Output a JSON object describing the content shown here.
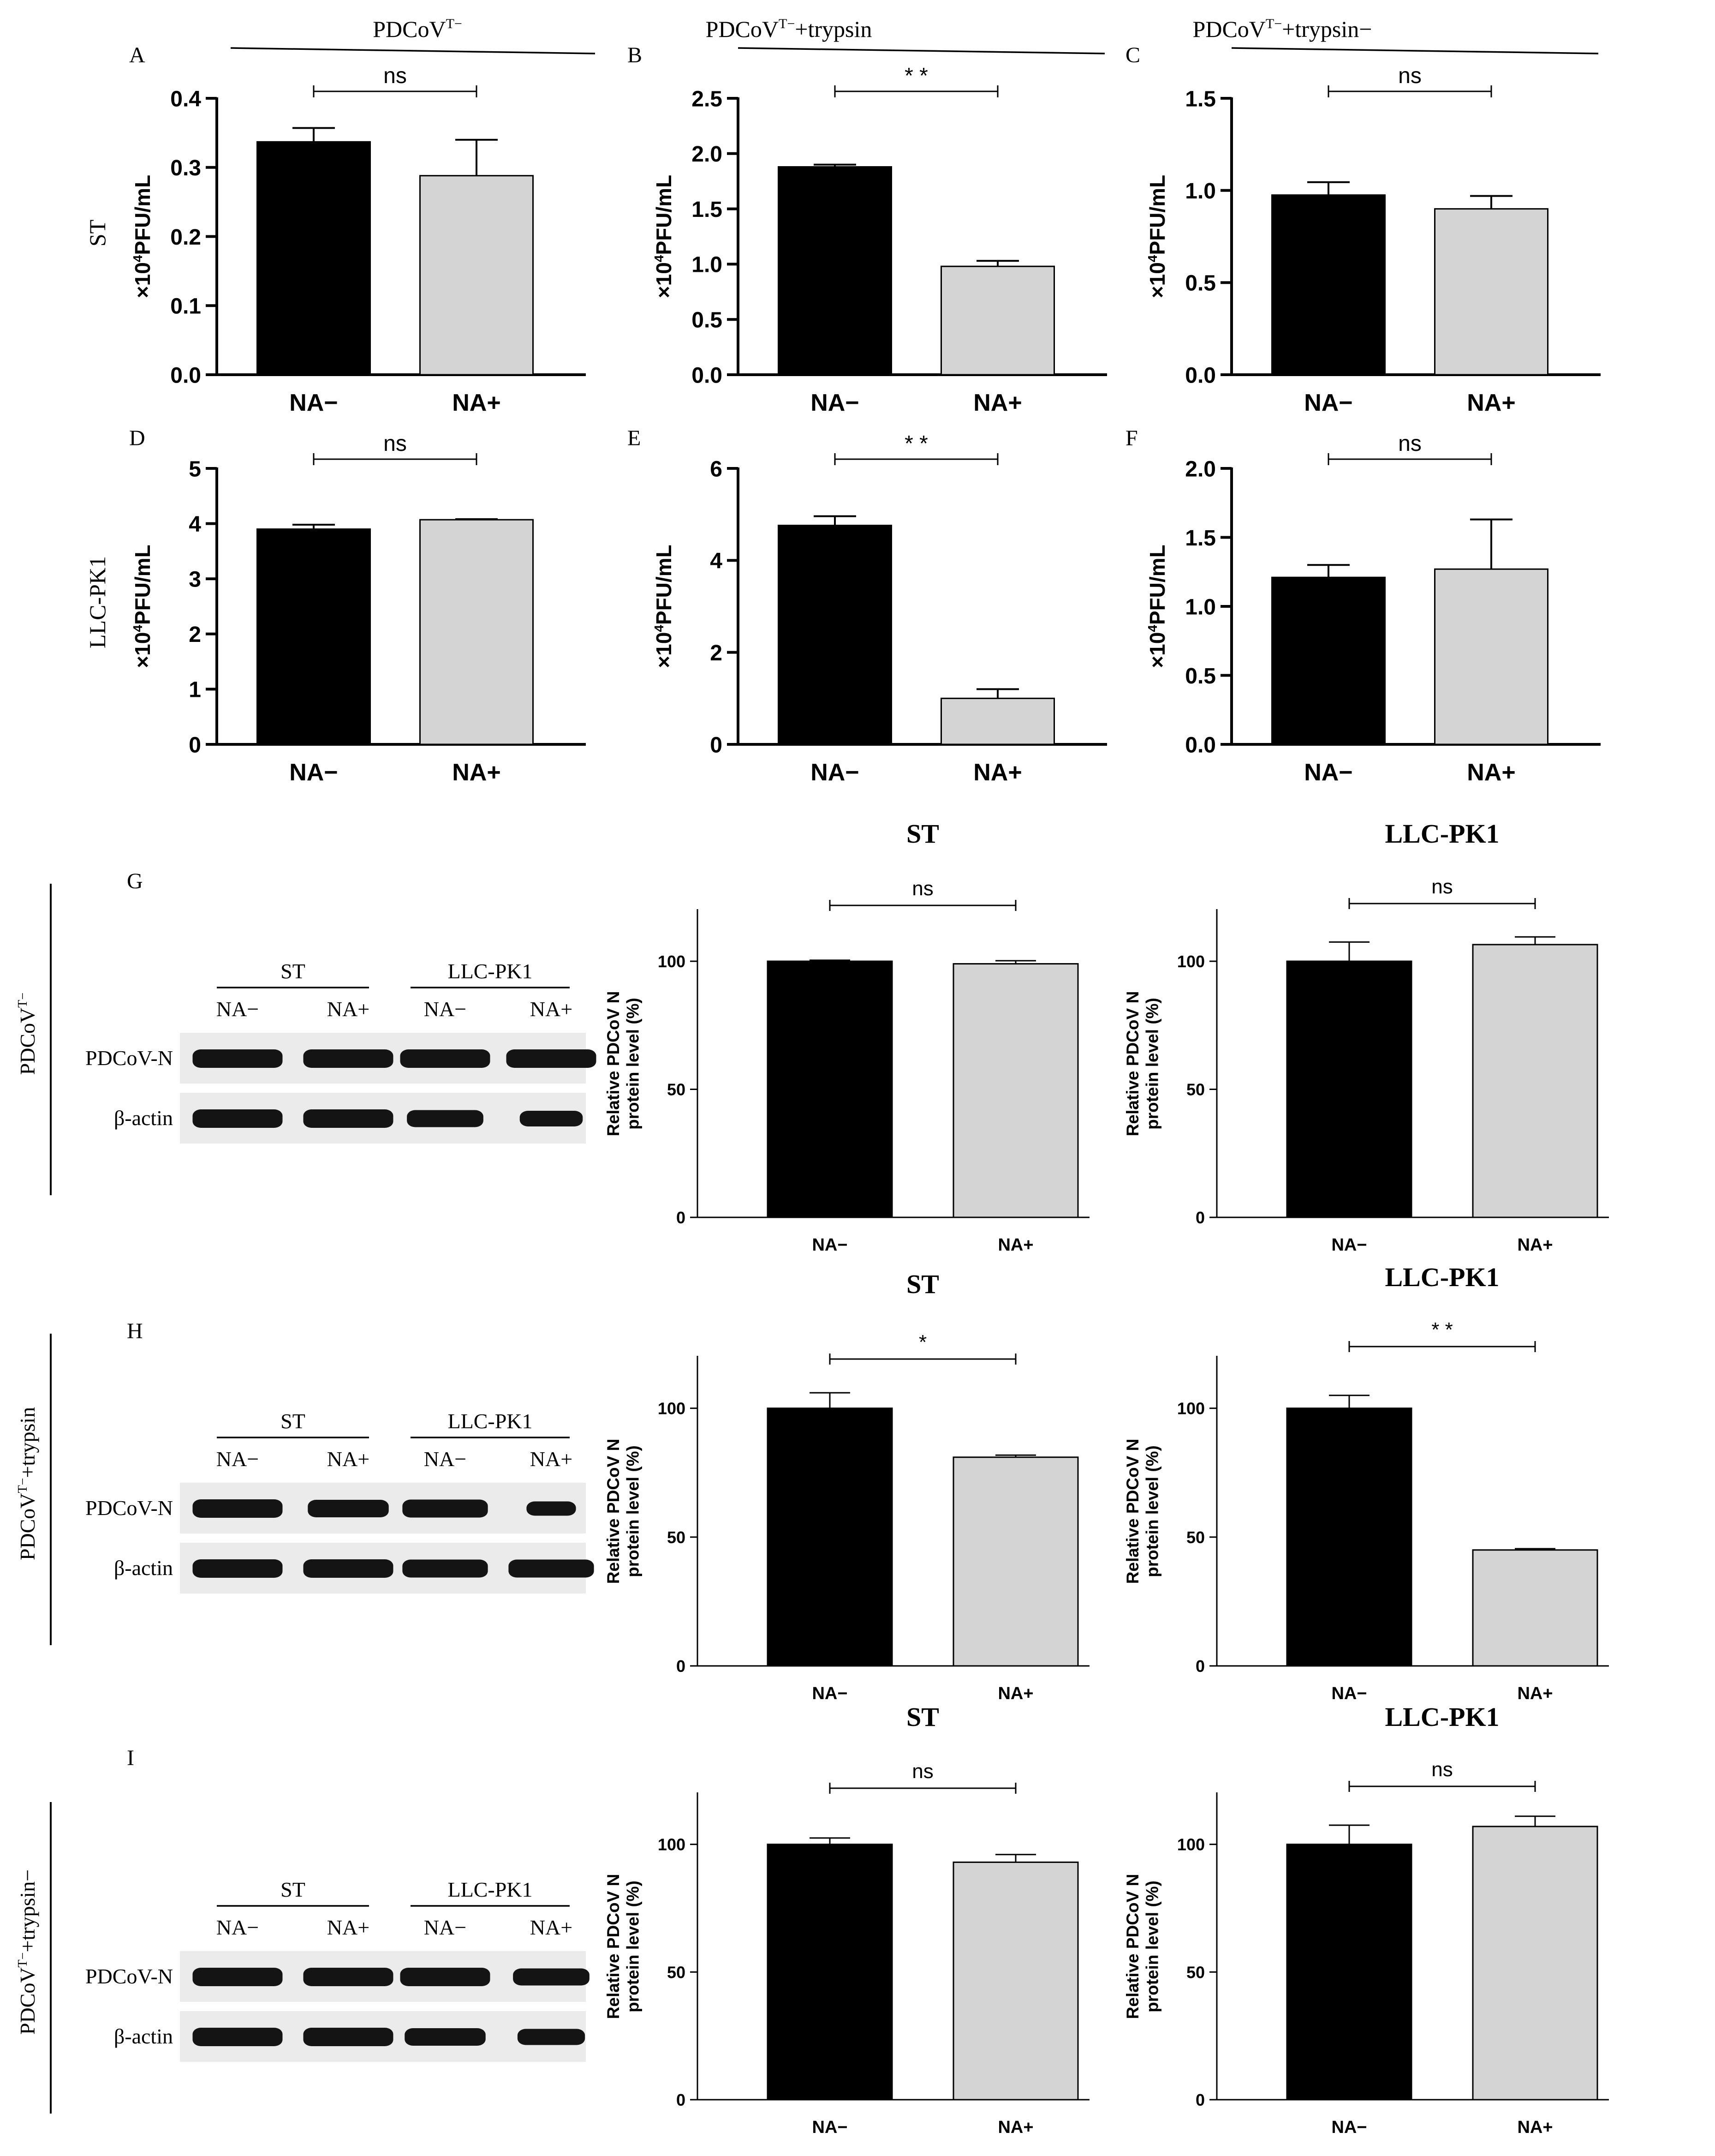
{
  "colors": {
    "bar_neg": "#000000",
    "bar_pos": "#d4d4d4",
    "axis": "#000000",
    "blot_bg": "#ebebeb",
    "band": "#141414"
  },
  "header": {
    "groups": [
      {
        "label": "PDCoV",
        "sup": "T−",
        "tail": ""
      },
      {
        "label": "PDCoV",
        "sup": "T−",
        "tail": "+trypsin"
      },
      {
        "label": "PDCoV",
        "sup": "T−",
        "tail": "+trypsin−"
      }
    ]
  },
  "row_labels": {
    "row1": "ST",
    "row2": "LLC-PK1"
  },
  "blot_panels": [
    {
      "letter": "G",
      "side_label": {
        "label": "PDCoV",
        "sup": "T−",
        "tail": ""
      },
      "group_labels": [
        "ST",
        "LLC-PK1"
      ],
      "lane_labels": [
        "NA−",
        "NA+",
        "NA−",
        "NA+"
      ],
      "rows": [
        "PDCoV-N",
        "β-actin"
      ],
      "bands": [
        [
          1.0,
          1.0,
          1.0,
          1.0
        ],
        [
          1.0,
          1.0,
          0.85,
          0.7
        ]
      ]
    },
    {
      "letter": "H",
      "side_label": {
        "label": "PDCoV",
        "sup": "T−",
        "tail": "+trypsin"
      },
      "group_labels": [
        "ST",
        "LLC-PK1"
      ],
      "lane_labels": [
        "NA−",
        "NA+",
        "NA−",
        "NA+"
      ],
      "rows": [
        "PDCoV-N",
        "β-actin"
      ],
      "bands": [
        [
          1.0,
          0.9,
          0.95,
          0.55
        ],
        [
          1.0,
          1.0,
          0.95,
          0.95
        ]
      ]
    },
    {
      "letter": "I",
      "side_label": {
        "label": "PDCoV",
        "sup": "T−",
        "tail": "+trypsin−"
      },
      "group_labels": [
        "ST",
        "LLC-PK1"
      ],
      "lane_labels": [
        "NA−",
        "NA+",
        "NA−",
        "NA+"
      ],
      "rows": [
        "PDCoV-N",
        "β-actin"
      ],
      "bands": [
        [
          1.0,
          1.0,
          1.0,
          0.85
        ],
        [
          1.0,
          1.0,
          0.9,
          0.75
        ]
      ]
    }
  ],
  "chart_data": [
    {
      "id": "A",
      "letter": "A",
      "type": "bar",
      "categories": [
        "NA−",
        "NA+"
      ],
      "values": [
        0.337,
        0.288
      ],
      "errors": [
        0.02,
        0.052
      ],
      "ylim": [
        0,
        0.4
      ],
      "yticks": [
        "0.0",
        "0.1",
        "0.2",
        "0.3",
        "0.4"
      ],
      "ylabel": {
        "pre": "×10",
        "sup": "4",
        "post": "PFU/mL"
      },
      "significance": "ns"
    },
    {
      "id": "B",
      "letter": "B",
      "type": "bar",
      "categories": [
        "NA−",
        "NA+"
      ],
      "values": [
        1.88,
        0.98
      ],
      "errors": [
        0.02,
        0.05
      ],
      "ylim": [
        0,
        2.5
      ],
      "yticks": [
        "0.0",
        "0.5",
        "1.0",
        "1.5",
        "2.0",
        "2.5"
      ],
      "ylabel": {
        "pre": "×10",
        "sup": "4",
        "post": "PFU/mL"
      },
      "significance": "* *"
    },
    {
      "id": "C",
      "letter": "C",
      "type": "bar",
      "categories": [
        "NA−",
        "NA+"
      ],
      "values": [
        0.975,
        0.9
      ],
      "errors": [
        0.07,
        0.07
      ],
      "ylim": [
        0,
        1.5
      ],
      "yticks": [
        "0.0",
        "0.5",
        "1.0",
        "1.5"
      ],
      "ylabel": {
        "pre": "×10",
        "sup": "4",
        "post": "PFU/mL"
      },
      "significance": "ns"
    },
    {
      "id": "D",
      "letter": "D",
      "type": "bar",
      "categories": [
        "NA−",
        "NA+"
      ],
      "values": [
        3.9,
        4.07
      ],
      "errors": [
        0.08,
        0.01
      ],
      "ylim": [
        0,
        5
      ],
      "yticks": [
        "0",
        "1",
        "2",
        "3",
        "4",
        "5"
      ],
      "ylabel": {
        "pre": "×10",
        "sup": "4",
        "post": "PFU/mL"
      },
      "significance": "ns"
    },
    {
      "id": "E",
      "letter": "E",
      "type": "bar",
      "categories": [
        "NA−",
        "NA+"
      ],
      "values": [
        4.76,
        1.0
      ],
      "errors": [
        0.2,
        0.2
      ],
      "ylim": [
        0,
        6
      ],
      "yticks": [
        "0",
        "2",
        "4",
        "6"
      ],
      "ylabel": {
        "pre": "×10",
        "sup": "4",
        "post": "PFU/mL"
      },
      "significance": "* *"
    },
    {
      "id": "F",
      "letter": "F",
      "type": "bar",
      "categories": [
        "NA−",
        "NA+"
      ],
      "values": [
        1.21,
        1.27
      ],
      "errors": [
        0.09,
        0.36
      ],
      "ylim": [
        0,
        2
      ],
      "yticks": [
        "0.0",
        "0.5",
        "1.0",
        "1.5",
        "2.0"
      ],
      "ylabel": {
        "pre": "×10",
        "sup": "4",
        "post": "PFU/mL"
      },
      "significance": "ns"
    },
    {
      "id": "G1",
      "title": "ST",
      "type": "bar",
      "categories": [
        "NA−",
        "NA+"
      ],
      "values": [
        100,
        99
      ],
      "errors": [
        0.4,
        1.2
      ],
      "ylim": [
        0,
        120
      ],
      "yticks": [
        "0",
        "50",
        "100"
      ],
      "tick_values": [
        0,
        50,
        100
      ],
      "ylabel_lines": [
        "Relative PDCoV N",
        "protein level (%)"
      ],
      "significance": "ns"
    },
    {
      "id": "G2",
      "title": "LLC-PK1",
      "type": "bar",
      "categories": [
        "NA−",
        "NA+"
      ],
      "values": [
        100,
        106.5
      ],
      "errors": [
        7.5,
        3
      ],
      "ylim": [
        0,
        120
      ],
      "yticks": [
        "0",
        "50",
        "100"
      ],
      "tick_values": [
        0,
        50,
        100
      ],
      "ylabel_lines": [
        "Relative PDCoV N",
        "protein level (%)"
      ],
      "significance": "ns"
    },
    {
      "id": "H1",
      "title": "ST",
      "type": "bar",
      "categories": [
        "NA−",
        "NA+"
      ],
      "values": [
        100,
        81
      ],
      "errors": [
        6,
        0.8
      ],
      "ylim": [
        0,
        120
      ],
      "yticks": [
        "0",
        "50",
        "100"
      ],
      "tick_values": [
        0,
        50,
        100
      ],
      "ylabel_lines": [
        "Relative PDCoV N",
        "protein level (%)"
      ],
      "significance": "*"
    },
    {
      "id": "H2",
      "title": "LLC-PK1",
      "type": "bar",
      "categories": [
        "NA−",
        "NA+"
      ],
      "values": [
        100,
        45
      ],
      "errors": [
        5,
        0.5
      ],
      "ylim": [
        0,
        120
      ],
      "yticks": [
        "0",
        "50",
        "100"
      ],
      "tick_values": [
        0,
        50,
        100
      ],
      "ylabel_lines": [
        "Relative PDCoV N",
        "protein level (%)"
      ],
      "significance": "* *"
    },
    {
      "id": "I1",
      "title": "ST",
      "type": "bar",
      "categories": [
        "NA−",
        "NA+"
      ],
      "values": [
        100,
        93
      ],
      "errors": [
        2.5,
        3
      ],
      "ylim": [
        0,
        120
      ],
      "yticks": [
        "0",
        "50",
        "100"
      ],
      "tick_values": [
        0,
        50,
        100
      ],
      "ylabel_lines": [
        "Relative PDCoV N",
        "protein level (%)"
      ],
      "significance": "ns"
    },
    {
      "id": "I2",
      "title": "LLC-PK1",
      "type": "bar",
      "categories": [
        "NA−",
        "NA+"
      ],
      "values": [
        100,
        107
      ],
      "errors": [
        7.5,
        4
      ],
      "ylim": [
        0,
        120
      ],
      "yticks": [
        "0",
        "50",
        "100"
      ],
      "tick_values": [
        0,
        50,
        100
      ],
      "ylabel_lines": [
        "Relative PDCoV N",
        "protein level (%)"
      ],
      "significance": "ns"
    }
  ]
}
